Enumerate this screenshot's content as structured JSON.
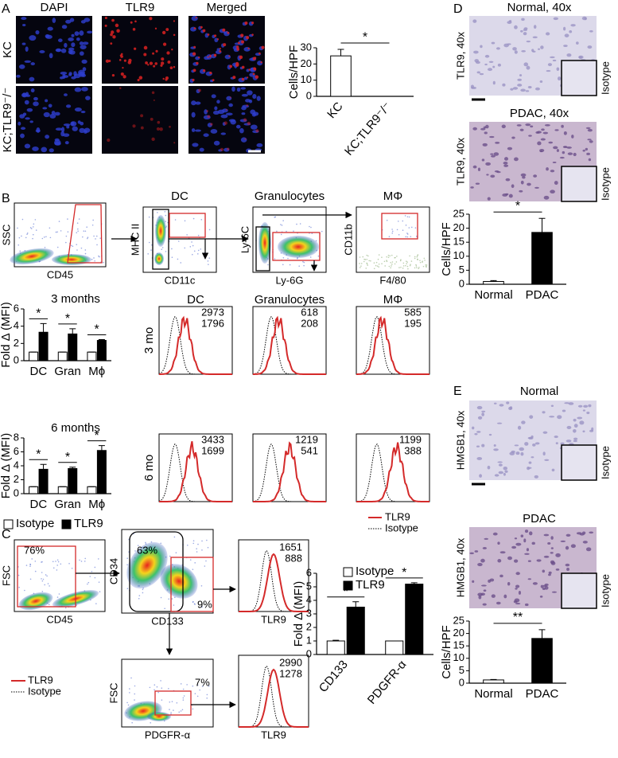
{
  "panels": {
    "A": {
      "label": "A",
      "columns": [
        "DAPI",
        "TLR9",
        "Merged"
      ],
      "rows": [
        "KC",
        "KC;TLR9⁻/⁻"
      ]
    },
    "B": {
      "label": "B",
      "flow": [
        {
          "y": "SSC",
          "x": "CD45"
        },
        {
          "title": "DC",
          "y": "MHC II",
          "x": "CD11c"
        },
        {
          "title": "Granulocytes",
          "y": "Ly-6C",
          "x": "Ly-6G"
        },
        {
          "title": "MΦ",
          "y": "CD11b",
          "x": "F4/80"
        }
      ],
      "histogram_columns": [
        "DC",
        "Granulocytes",
        "MΦ"
      ],
      "histogram_rows": [
        {
          "label": "3 mo",
          "mfi": [
            {
              "tlr9": 2973,
              "isotype": 1796
            },
            {
              "tlr9": 618,
              "isotype": 208
            },
            {
              "tlr9": 585,
              "isotype": 195
            }
          ]
        },
        {
          "label": "6 mo",
          "mfi": [
            {
              "tlr9": 3433,
              "isotype": 1699
            },
            {
              "tlr9": 1219,
              "isotype": 541
            },
            {
              "tlr9": 1199,
              "isotype": 388
            }
          ]
        }
      ],
      "legend": [
        "TLR9",
        "Isotype"
      ]
    },
    "C": {
      "label": "C",
      "flow": [
        {
          "gates": [
            "76%"
          ],
          "y": "FSC",
          "x": "CD45"
        },
        {
          "gates": [
            "63%",
            "9%"
          ],
          "y": "CD34",
          "x": "CD133"
        },
        {
          "gates": [
            "7%"
          ],
          "y": "FSC",
          "x": "PDGFR-α"
        }
      ],
      "histograms": [
        {
          "x": "TLR9",
          "tlr9": 1651,
          "isotype": 888
        },
        {
          "x": "TLR9",
          "tlr9": 2990,
          "isotype": 1278
        }
      ],
      "legend": [
        "TLR9",
        "Isotype"
      ]
    },
    "D": {
      "label": "D",
      "images": [
        {
          "title": "Normal, 40x",
          "side": "TLR9, 40x",
          "inset": "Isotype"
        },
        {
          "title": "PDAC, 40x",
          "side": "TLR9, 40x",
          "inset": "Isotype"
        }
      ]
    },
    "E": {
      "label": "E",
      "images": [
        {
          "title": "Normal",
          "side": "HMGB1, 40x",
          "inset": "Isotype"
        },
        {
          "title": "PDAC",
          "side": "HMGB1, 40x",
          "inset": "Isotype"
        }
      ]
    }
  },
  "chart_data": [
    {
      "type": "bar",
      "ylabel": "Cells/HPF",
      "categories": [
        "KC",
        "KC;TLR9⁻/⁻"
      ],
      "values": [
        25,
        0
      ],
      "errors": [
        4,
        0
      ],
      "colors": [
        "#ffffff",
        "#000000"
      ],
      "ylim": [
        0,
        30
      ],
      "yticks": [
        0,
        10,
        20,
        30
      ],
      "annotations": [
        "*"
      ]
    },
    {
      "type": "bar",
      "title": "3 months",
      "ylabel": "Fold Δ (MFI)",
      "categories": [
        "DC",
        "Gran",
        "Mϕ"
      ],
      "series": [
        {
          "color": "#ffffff",
          "values": [
            1,
            1,
            1
          ],
          "errors": [
            0,
            0,
            0
          ]
        },
        {
          "color": "#000000",
          "values": [
            3.3,
            3.1,
            2.35
          ],
          "errors": [
            1,
            0.6,
            0.1
          ]
        }
      ],
      "ylim": [
        0,
        6
      ],
      "yticks": [
        0,
        2,
        4,
        6
      ],
      "annotations": [
        "*",
        "*",
        "*"
      ]
    },
    {
      "type": "bar",
      "title": "6 months",
      "ylabel": "Fold Δ (MFI)",
      "categories": [
        "DC",
        "Gran",
        "Mϕ"
      ],
      "series": [
        {
          "name": "Isotype",
          "color": "#ffffff",
          "values": [
            1,
            1,
            1
          ],
          "errors": [
            0,
            0,
            0
          ]
        },
        {
          "name": "TLR9",
          "color": "#000000",
          "values": [
            3.5,
            3.6,
            6.2
          ],
          "errors": [
            0.7,
            0.2,
            0.7
          ]
        }
      ],
      "ylim": [
        0,
        8
      ],
      "yticks": [
        0,
        2,
        4,
        6,
        8
      ],
      "annotations": [
        "*",
        "*",
        "*"
      ]
    },
    {
      "type": "bar",
      "ylabel": "Fold Δ (MFI)",
      "categories": [
        "CD133",
        "PDGFR-α"
      ],
      "series": [
        {
          "name": "Isotype",
          "color": "#ffffff",
          "values": [
            1,
            1
          ],
          "errors": [
            0.05,
            0
          ]
        },
        {
          "name": "TLR9",
          "color": "#000000",
          "values": [
            3.5,
            5.2
          ],
          "errors": [
            0.4,
            0.1
          ]
        }
      ],
      "ylim": [
        0,
        6
      ],
      "yticks": [
        0,
        1,
        2,
        3,
        4,
        5,
        6
      ],
      "annotations": [
        "*",
        "*"
      ]
    },
    {
      "type": "bar",
      "ylabel": "Cells/HPF",
      "categories": [
        "Normal",
        "PDAC"
      ],
      "values": [
        1,
        18.5
      ],
      "errors": [
        0.3,
        5
      ],
      "colors": [
        "#ffffff",
        "#000000"
      ],
      "ylim": [
        0,
        25
      ],
      "yticks": [
        0,
        5,
        10,
        15,
        20,
        25
      ],
      "annotations": [
        "*"
      ]
    },
    {
      "type": "bar",
      "ylabel": "Cells/HPF",
      "categories": [
        "Normal",
        "PDAC"
      ],
      "values": [
        1.3,
        18
      ],
      "errors": [
        0.2,
        3.5
      ],
      "colors": [
        "#ffffff",
        "#000000"
      ],
      "ylim": [
        0,
        25
      ],
      "yticks": [
        0,
        5,
        10,
        15,
        20,
        25
      ],
      "annotations": [
        "**"
      ]
    }
  ]
}
